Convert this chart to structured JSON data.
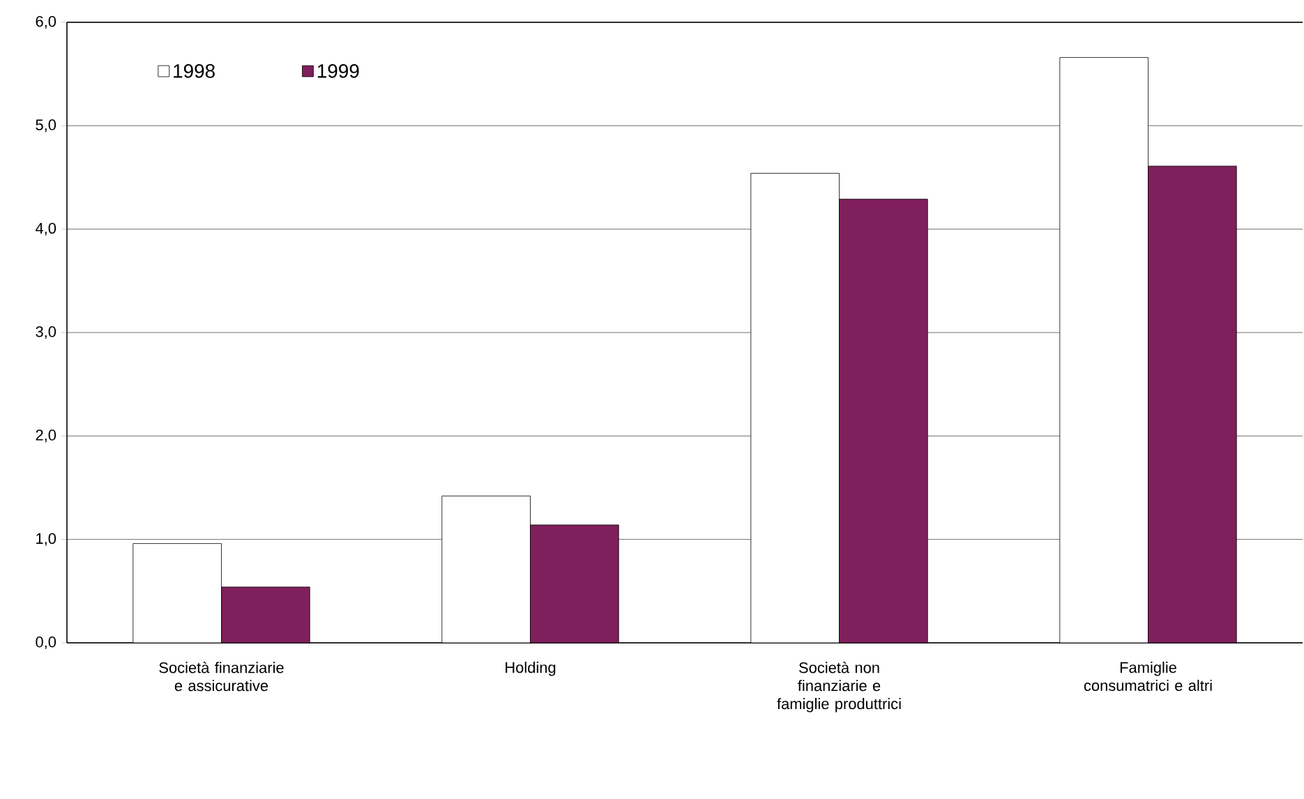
{
  "chart_data": {
    "type": "bar",
    "categories": [
      "Società finanziarie e assicurative",
      "Holding",
      "Società non finanziarie e famiglie produttrici",
      "Famiglie consumatrici e altri"
    ],
    "series": [
      {
        "name": "1998",
        "color": "#ffffff",
        "values": [
          0.96,
          1.42,
          4.54,
          5.66
        ]
      },
      {
        "name": "1999",
        "color": "#7f1f5b",
        "values": [
          0.54,
          1.14,
          4.29,
          4.61
        ]
      }
    ],
    "ylim": [
      0,
      6
    ],
    "yticks": [
      {
        "value": 0,
        "label": "0,0"
      },
      {
        "value": 1,
        "label": "1,0"
      },
      {
        "value": 2,
        "label": "2,0"
      },
      {
        "value": 3,
        "label": "3,0"
      },
      {
        "value": 4,
        "label": "4,0"
      },
      {
        "value": 5,
        "label": "5,0"
      },
      {
        "value": 6,
        "label": "6,0"
      }
    ],
    "grid": "y",
    "legend": "top left"
  }
}
